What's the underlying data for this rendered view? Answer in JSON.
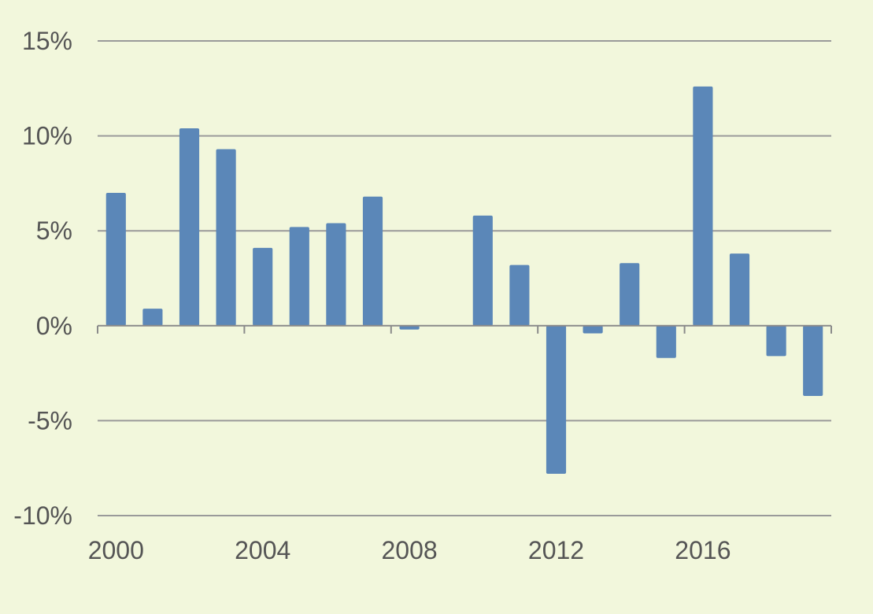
{
  "chart_data": {
    "type": "bar",
    "title": "",
    "xlabel": "",
    "ylabel": "",
    "categories": [
      "2000",
      "2001",
      "2002",
      "2003",
      "2004",
      "2005",
      "2006",
      "2007",
      "2008",
      "2009",
      "2010",
      "2011",
      "2012",
      "2013",
      "2014",
      "2015",
      "2016",
      "2017",
      "2018",
      "2019"
    ],
    "values": [
      7.0,
      0.9,
      10.4,
      9.3,
      4.1,
      5.2,
      5.4,
      6.8,
      -0.2,
      0.0,
      5.8,
      3.2,
      -7.8,
      -0.4,
      3.3,
      -1.7,
      12.6,
      3.8,
      -1.6,
      -3.7
    ],
    "ylim": [
      -10,
      15
    ],
    "yticks": [
      15,
      10,
      5,
      0,
      -5,
      -10
    ],
    "ytick_labels": [
      "15%",
      "10%",
      "5%",
      "0%",
      "-5%",
      "-10%"
    ],
    "xtick_labels": [
      {
        "index": 0,
        "label": "2000"
      },
      {
        "index": 4,
        "label": "2004"
      },
      {
        "index": 8,
        "label": "2008"
      },
      {
        "index": 12,
        "label": "2012"
      },
      {
        "index": 16,
        "label": "2016"
      }
    ],
    "grid": true,
    "legend": "none",
    "colors": {
      "bar": "#5b87b8",
      "background": "#f2f7dc",
      "grid": "#9a9a9a",
      "text": "#555555"
    }
  }
}
